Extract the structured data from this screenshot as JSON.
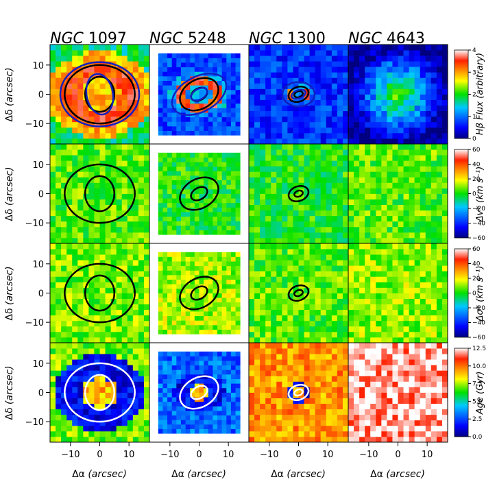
{
  "chart_data": {
    "type": "heatmap",
    "description_grid": "4x4 panel grid of 2D kinematic/stellar-population maps with contour overlays",
    "galaxies": [
      {
        "prefix": "NGC",
        "number": "1097"
      },
      {
        "prefix": "NGC",
        "number": "5248"
      },
      {
        "prefix": "NGC",
        "number": "1300"
      },
      {
        "prefix": "NGC",
        "number": "4643"
      }
    ],
    "x_axis": {
      "label_sym": "Δα",
      "label_unit": "(arcsec)",
      "range": [
        -17,
        17
      ],
      "ticks": [
        -10,
        0,
        10
      ],
      "tick_labels": [
        "−10",
        "0",
        "10"
      ]
    },
    "y_axis": {
      "label_sym": "Δδ",
      "label_unit": "(arcsec)",
      "range": [
        -17,
        17
      ],
      "ticks": [
        10,
        0,
        -10
      ],
      "tick_labels": [
        "10",
        "0",
        "−10"
      ]
    },
    "rows": [
      {
        "quantity": "Hβ Flux",
        "colorbar": {
          "label_main": "Hβ Flux",
          "label_rest": "(arbitrary)",
          "range": [
            0,
            4
          ],
          "ticks": [
            0,
            1,
            2,
            3,
            4
          ],
          "tick_labels": [
            "0",
            "1",
            "2",
            "3",
            "4"
          ]
        }
      },
      {
        "quantity": "Δv",
        "colorbar": {
          "label_main": "Δv",
          "label_rest": "* (km s⁻¹)",
          "range": [
            -60,
            60
          ],
          "ticks": [
            60,
            40,
            20,
            0,
            -20,
            -40,
            -60
          ],
          "tick_labels": [
            "60",
            "40",
            "20",
            "0",
            "−20",
            "−40",
            "−60"
          ]
        }
      },
      {
        "quantity": "Δσ",
        "colorbar": {
          "label_main": "Δσ",
          "label_rest": "* (km s⁻¹)",
          "range": [
            -60,
            60
          ],
          "ticks": [
            60,
            40,
            20,
            0,
            -20,
            -40,
            -60
          ],
          "tick_labels": [
            "60",
            "40",
            "20",
            "0",
            "−20",
            "−40",
            "−60"
          ]
        }
      },
      {
        "quantity": "Age",
        "colorbar": {
          "label_main": "Age",
          "label_rest": "(Gyr)",
          "range": [
            0,
            12.5
          ],
          "ticks": [
            12.5,
            10.0,
            7.5,
            5.0,
            2.5,
            0.0
          ],
          "tick_labels": [
            "12.5",
            "10.0",
            "7.5",
            "5.0",
            "2.5",
            "0.0"
          ]
        }
      }
    ],
    "panel_background_values": [
      [
        1.8,
        0.8,
        0.7,
        1.0
      ],
      [
        5,
        0,
        0,
        5
      ],
      [
        8,
        12,
        5,
        10
      ],
      [
        7.0,
        3.0,
        9.5,
        12.0
      ]
    ],
    "panel_field_extent": [
      [
        17,
        14,
        17,
        17
      ],
      [
        17,
        14,
        17,
        17
      ],
      [
        17,
        14,
        17,
        17
      ],
      [
        17,
        14,
        17,
        17
      ]
    ],
    "ring_contours_arcsec": [
      {
        "rx": 12,
        "ry": 10,
        "rot": 0,
        "inner_rx": 5,
        "inner_ry": 6
      },
      {
        "rx": 7,
        "ry": 5,
        "rot": -30,
        "inner_rx": 3,
        "inner_ry": 2
      },
      {
        "rx": 3.5,
        "ry": 2.5,
        "rot": -20,
        "inner_rx": 1.5,
        "inner_ry": 1
      },
      null
    ],
    "ellipse_overlays_arcsec": [
      [
        {
          "rx": 13.5,
          "ry": 11,
          "rot": 0
        },
        {
          "rx": 4.5,
          "ry": 7,
          "rot": -10
        }
      ],
      [
        {
          "rx": 10,
          "ry": 6,
          "rot": -28
        },
        {
          "rx": 3,
          "ry": 1.8,
          "rot": -30
        }
      ],
      [
        {
          "rx": 5.5,
          "ry": 4.2,
          "rot": 0
        },
        {
          "rx": 2.5,
          "ry": 1.4,
          "rot": -20
        }
      ],
      []
    ]
  }
}
